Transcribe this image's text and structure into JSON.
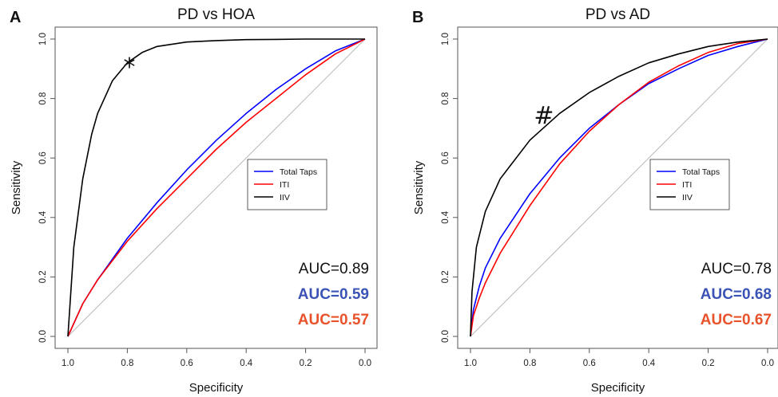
{
  "chart_data": [
    {
      "type": "line",
      "panel_label": "A",
      "title": "PD vs HOA",
      "xlabel": "Specificity",
      "ylabel": "Sensitivity",
      "xlim": [
        1.0,
        0.0
      ],
      "ylim": [
        0.0,
        1.0
      ],
      "x_ticks": [
        "1.0",
        "0.8",
        "0.6",
        "0.4",
        "0.2",
        "0.0"
      ],
      "y_ticks": [
        "0.0",
        "0.2",
        "0.4",
        "0.6",
        "0.8",
        "1.0"
      ],
      "grid": false,
      "reference_diagonal": true,
      "legend_position": "center-right",
      "annotation": "*",
      "series": [
        {
          "name": "Total Taps",
          "color": "#0000ff",
          "auc_label": "AUC=0.59",
          "auc_color": "#3b53b4",
          "x": [
            1.0,
            0.95,
            0.9,
            0.8,
            0.7,
            0.6,
            0.5,
            0.4,
            0.3,
            0.2,
            0.1,
            0.0
          ],
          "y": [
            0.0,
            0.11,
            0.19,
            0.33,
            0.45,
            0.56,
            0.66,
            0.75,
            0.83,
            0.9,
            0.96,
            1.0
          ]
        },
        {
          "name": "ITI",
          "color": "#ff0000",
          "auc_label": "AUC=0.57",
          "auc_color": "#e8532b",
          "x": [
            1.0,
            0.95,
            0.9,
            0.8,
            0.7,
            0.6,
            0.5,
            0.4,
            0.3,
            0.2,
            0.1,
            0.0
          ],
          "y": [
            0.0,
            0.11,
            0.19,
            0.32,
            0.43,
            0.53,
            0.63,
            0.72,
            0.8,
            0.88,
            0.95,
            1.0
          ]
        },
        {
          "name": "IIV",
          "color": "#000000",
          "auc_label": "AUC=0.89",
          "auc_color": "#111111",
          "x": [
            1.0,
            0.98,
            0.95,
            0.92,
            0.9,
            0.85,
            0.8,
            0.75,
            0.7,
            0.6,
            0.5,
            0.4,
            0.3,
            0.2,
            0.1,
            0.0
          ],
          "y": [
            0.0,
            0.3,
            0.53,
            0.68,
            0.75,
            0.86,
            0.92,
            0.955,
            0.975,
            0.99,
            0.995,
            0.998,
            0.999,
            1.0,
            1.0,
            1.0
          ]
        }
      ]
    },
    {
      "type": "line",
      "panel_label": "B",
      "title": "PD vs AD",
      "xlabel": "Specificity",
      "ylabel": "Sensitivity",
      "xlim": [
        1.0,
        0.0
      ],
      "ylim": [
        0.0,
        1.0
      ],
      "x_ticks": [
        "1.0",
        "0.8",
        "0.6",
        "0.4",
        "0.2",
        "0.0"
      ],
      "y_ticks": [
        "0.0",
        "0.2",
        "0.4",
        "0.6",
        "0.8",
        "1.0"
      ],
      "grid": false,
      "reference_diagonal": true,
      "legend_position": "center-right",
      "annotation": "#",
      "series": [
        {
          "name": "Total Taps",
          "color": "#0000ff",
          "auc_label": "AUC=0.68",
          "auc_color": "#3b53b4",
          "x": [
            1.0,
            0.99,
            0.97,
            0.95,
            0.9,
            0.8,
            0.7,
            0.6,
            0.5,
            0.4,
            0.3,
            0.2,
            0.1,
            0.0
          ],
          "y": [
            0.0,
            0.09,
            0.17,
            0.23,
            0.33,
            0.48,
            0.6,
            0.7,
            0.78,
            0.85,
            0.9,
            0.945,
            0.975,
            1.0
          ]
        },
        {
          "name": "ITI",
          "color": "#ff0000",
          "auc_label": "AUC=0.67",
          "auc_color": "#e8532b",
          "x": [
            1.0,
            0.99,
            0.97,
            0.95,
            0.9,
            0.8,
            0.7,
            0.6,
            0.5,
            0.4,
            0.3,
            0.2,
            0.1,
            0.0
          ],
          "y": [
            0.0,
            0.07,
            0.13,
            0.18,
            0.28,
            0.44,
            0.58,
            0.69,
            0.78,
            0.855,
            0.91,
            0.955,
            0.985,
            1.0
          ]
        },
        {
          "name": "IIV",
          "color": "#000000",
          "auc_label": "AUC=0.78",
          "auc_color": "#111111",
          "x": [
            1.0,
            0.995,
            0.98,
            0.95,
            0.9,
            0.8,
            0.7,
            0.6,
            0.5,
            0.4,
            0.3,
            0.2,
            0.1,
            0.0
          ],
          "y": [
            0.0,
            0.15,
            0.3,
            0.42,
            0.53,
            0.66,
            0.75,
            0.82,
            0.875,
            0.92,
            0.95,
            0.975,
            0.99,
            1.0
          ]
        }
      ]
    }
  ]
}
